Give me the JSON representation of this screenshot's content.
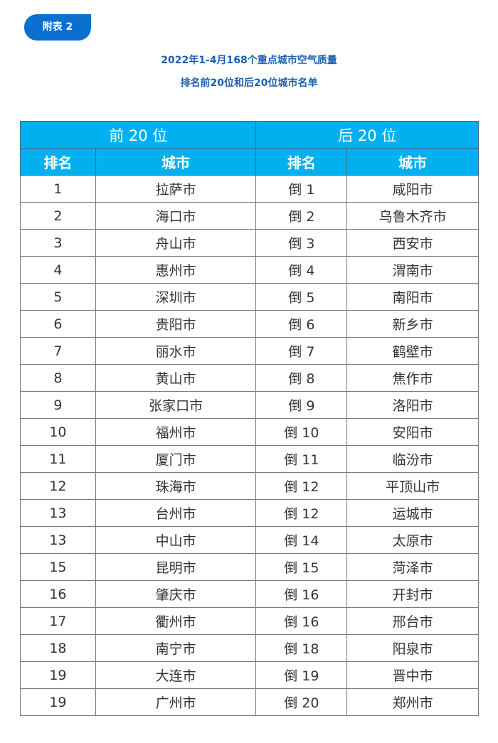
{
  "badge": "附表 2",
  "title_line1": "2022年1-4月168个重点城市空气质量",
  "title_line2": "排名前20位和后20位城市名单",
  "table": {
    "group_top": "前 20 位",
    "group_bottom": "后 20 位",
    "col_rank": "排名",
    "col_city": "城市",
    "rows": [
      {
        "rank": "1",
        "city": "拉萨市",
        "brank": "倒 1",
        "bcity": "咸阳市"
      },
      {
        "rank": "2",
        "city": "海口市",
        "brank": "倒 2",
        "bcity": "乌鲁木齐市"
      },
      {
        "rank": "3",
        "city": "舟山市",
        "brank": "倒 3",
        "bcity": "西安市"
      },
      {
        "rank": "4",
        "city": "惠州市",
        "brank": "倒 4",
        "bcity": "渭南市"
      },
      {
        "rank": "5",
        "city": "深圳市",
        "brank": "倒 5",
        "bcity": "南阳市"
      },
      {
        "rank": "6",
        "city": "贵阳市",
        "brank": "倒 6",
        "bcity": "新乡市"
      },
      {
        "rank": "7",
        "city": "丽水市",
        "brank": "倒 7",
        "bcity": "鹤壁市"
      },
      {
        "rank": "8",
        "city": "黄山市",
        "brank": "倒 8",
        "bcity": "焦作市"
      },
      {
        "rank": "9",
        "city": "张家口市",
        "brank": "倒 9",
        "bcity": "洛阳市"
      },
      {
        "rank": "10",
        "city": "福州市",
        "brank": "倒 10",
        "bcity": "安阳市"
      },
      {
        "rank": "11",
        "city": "厦门市",
        "brank": "倒 11",
        "bcity": "临汾市"
      },
      {
        "rank": "12",
        "city": "珠海市",
        "brank": "倒 12",
        "bcity": "平顶山市"
      },
      {
        "rank": "13",
        "city": "台州市",
        "brank": "倒 12",
        "bcity": "运城市"
      },
      {
        "rank": "13",
        "city": "中山市",
        "brank": "倒 14",
        "bcity": "太原市"
      },
      {
        "rank": "15",
        "city": "昆明市",
        "brank": "倒 15",
        "bcity": "菏泽市"
      },
      {
        "rank": "16",
        "city": "肇庆市",
        "brank": "倒 16",
        "bcity": "开封市"
      },
      {
        "rank": "17",
        "city": "衢州市",
        "brank": "倒 16",
        "bcity": "邢台市"
      },
      {
        "rank": "18",
        "city": "南宁市",
        "brank": "倒 18",
        "bcity": "阳泉市"
      },
      {
        "rank": "19",
        "city": "大连市",
        "brank": "倒 19",
        "bcity": "晋中市"
      },
      {
        "rank": "19",
        "city": "广州市",
        "brank": "倒 20",
        "bcity": "郑州市"
      }
    ]
  }
}
